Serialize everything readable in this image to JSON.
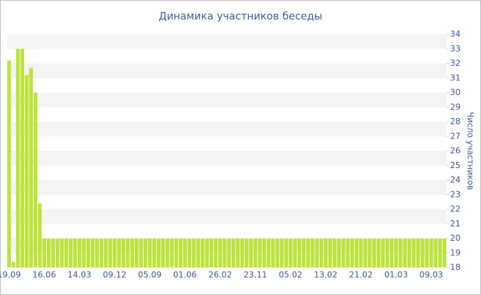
{
  "chart_data": {
    "type": "bar",
    "title": "Динамика участников беседы",
    "y_label": "Число участников",
    "categories": [
      "19.09",
      null,
      null,
      null,
      null,
      null,
      null,
      null,
      "16.06",
      null,
      null,
      null,
      null,
      null,
      null,
      null,
      "14.03",
      null,
      null,
      null,
      null,
      null,
      null,
      null,
      "09.12",
      null,
      null,
      null,
      null,
      null,
      null,
      null,
      "05.09",
      null,
      null,
      null,
      null,
      null,
      null,
      null,
      "01.06",
      null,
      null,
      null,
      null,
      null,
      null,
      null,
      "26.02",
      null,
      null,
      null,
      null,
      null,
      null,
      null,
      "23.11",
      null,
      null,
      null,
      null,
      null,
      null,
      null,
      "05.02",
      null,
      null,
      null,
      null,
      null,
      null,
      null,
      "13.02",
      null,
      null,
      null,
      null,
      null,
      null,
      null,
      "21.02",
      null,
      null,
      null,
      null,
      null,
      null,
      null,
      "01.03",
      null,
      null,
      null,
      null,
      null,
      null,
      null,
      "09.03",
      null,
      null,
      null
    ],
    "values": [
      32.2,
      18.4,
      33,
      33,
      31.2,
      31.7,
      30,
      22.4,
      20,
      20,
      20,
      20,
      20,
      20,
      20,
      20,
      20,
      20,
      20,
      20,
      20,
      20,
      20,
      20,
      20,
      20,
      20,
      20,
      20,
      20,
      20,
      20,
      20,
      20,
      20,
      20,
      20,
      20,
      20,
      20,
      20,
      20,
      20,
      20,
      20,
      20,
      20,
      20,
      20,
      20,
      20,
      20,
      20,
      20,
      20,
      20,
      20,
      20,
      20,
      20,
      20,
      20,
      20,
      20,
      20,
      20,
      20,
      20,
      20,
      20,
      20,
      20,
      20,
      20,
      20,
      20,
      20,
      20,
      20,
      20,
      20,
      20,
      20,
      20,
      20,
      20,
      20,
      20,
      20,
      20,
      20,
      20,
      20,
      20,
      20,
      20,
      20,
      20,
      20,
      20
    ],
    "color": "#bde33b",
    "ylim": [
      18,
      34
    ],
    "yticks": [
      18,
      19,
      20,
      21,
      22,
      23,
      24,
      25,
      26,
      27,
      28,
      29,
      30,
      31,
      32,
      33,
      34
    ],
    "grid": true
  }
}
